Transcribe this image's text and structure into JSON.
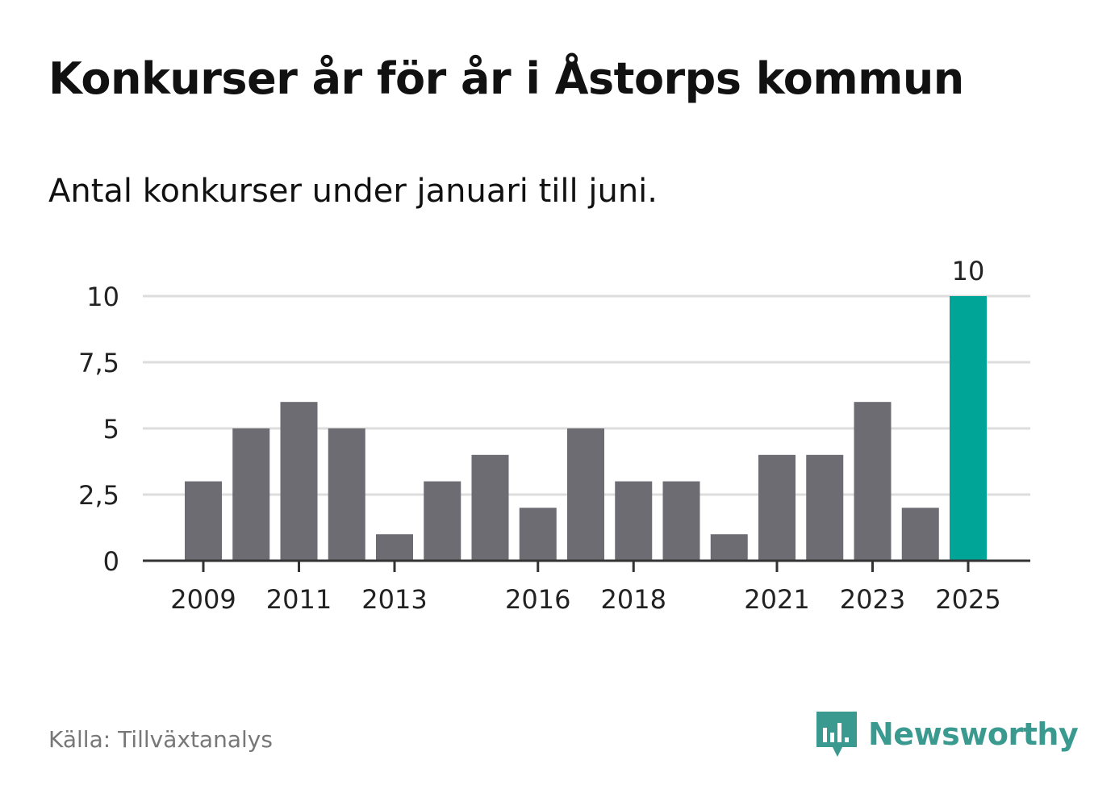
{
  "header": {
    "title": "Konkurser år för år i Åstorps kommun",
    "subtitle": "Antal konkurser under januari till juni."
  },
  "footer": {
    "source": "Källa: Tillväxtanalys",
    "brand": "Newsworthy",
    "brand_icon": "newsworthy-logo-icon"
  },
  "colors": {
    "bar": "#6d6c72",
    "highlight": "#00a597",
    "grid": "#dddddd",
    "axis": "#333333",
    "brand": "#3a9a8f"
  },
  "chart_data": {
    "type": "bar",
    "categories": [
      "2009",
      "2010",
      "2011",
      "2012",
      "2013",
      "2014",
      "2015",
      "2016",
      "2017",
      "2018",
      "2019",
      "2020",
      "2021",
      "2022",
      "2023",
      "2024",
      "2025"
    ],
    "values": [
      3,
      5,
      6,
      5,
      1,
      3,
      4,
      2,
      5,
      3,
      3,
      1,
      4,
      4,
      6,
      2,
      10
    ],
    "x_tick_labels": [
      "2009",
      "2011",
      "2013",
      "2016",
      "2018",
      "2021",
      "2023",
      "2025"
    ],
    "y_ticks": [
      0,
      2.5,
      5,
      7.5,
      10
    ],
    "y_tick_labels": [
      "0",
      "2,5",
      "5",
      "7,5",
      "10"
    ],
    "ylim": [
      0,
      10
    ],
    "highlight_category": "2025",
    "data_labels": [
      {
        "category": "2025",
        "text": "10"
      }
    ],
    "grid": true,
    "legend": "none"
  }
}
